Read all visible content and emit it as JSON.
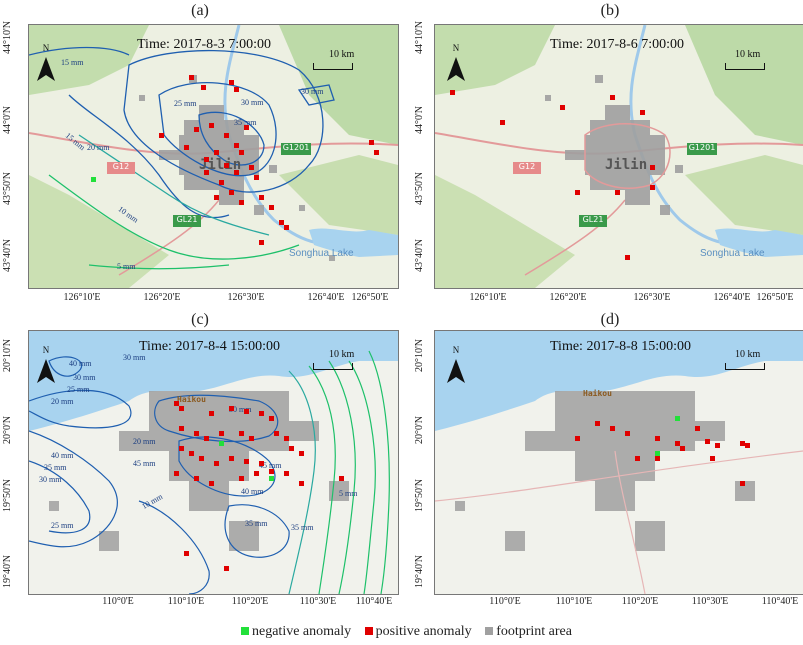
{
  "panels": [
    {
      "label": "(a)",
      "time": "Time: 2017-8-3 7:00:00",
      "scale": "10 km",
      "north": "N",
      "yticks": [
        "44°10'N",
        "44°0'N",
        "43°50'N",
        "43°40'N"
      ],
      "xticks": [
        "126°10'E",
        "126°20'E",
        "126°30'E",
        "126°40'E",
        "126°50'E"
      ],
      "city": "Jilin",
      "lake": "Songhua Lake",
      "roads": [
        "G1201",
        "G12",
        "GL21"
      ],
      "contours": [
        "15 mm",
        "25 mm",
        "30 mm",
        "35 mm",
        "30 mm",
        "20 mm",
        "15 mm",
        "10 mm",
        "5 mm"
      ]
    },
    {
      "label": "(b)",
      "time": "Time: 2017-8-6 7:00:00",
      "scale": "10 km",
      "north": "N",
      "yticks": [
        "44°10'N",
        "44°0'N",
        "43°50'N",
        "43°40'N"
      ],
      "xticks": [
        "126°10'E",
        "126°20'E",
        "126°30'E",
        "126°40'E",
        "126°50'E"
      ],
      "city": "Jilin",
      "lake": "Songhua Lake",
      "roads": [
        "G1201",
        "G12",
        "GL21"
      ]
    },
    {
      "label": "(c)",
      "time": "Time: 2017-8-4 15:00:00",
      "scale": "10 km",
      "north": "N",
      "yticks": [
        "20°10'N",
        "20°0'N",
        "19°50'N",
        "19°40'N"
      ],
      "xticks": [
        "110°0'E",
        "110°10'E",
        "110°20'E",
        "110°30'E",
        "110°40'E"
      ],
      "city": "Haikou",
      "contours": [
        "40 mm",
        "30 mm",
        "30 mm",
        "25 mm",
        "20 mm",
        "50 mm",
        "20 mm",
        "45 mm",
        "40 mm",
        "35 mm",
        "30 mm",
        "45 mm",
        "40 mm",
        "10 mm",
        "25 mm",
        "35 mm",
        "35 mm",
        "5 mm"
      ]
    },
    {
      "label": "(d)",
      "time": "Time: 2017-8-8 15:00:00",
      "scale": "10 km",
      "north": "N",
      "yticks": [
        "20°10'N",
        "20°0'N",
        "19°50'N",
        "19°40'N"
      ],
      "xticks": [
        "110°0'E",
        "110°10'E",
        "110°20'E",
        "110°30'E",
        "110°40'E"
      ],
      "city": "Haikou"
    }
  ],
  "legend": {
    "negative": "negative anomaly",
    "positive": "positive anomaly",
    "footprint": "footprint area"
  },
  "colors": {
    "negative": "#22e03a",
    "positive": "#e00000",
    "footprint": "#a0a0a0",
    "water": "#a8d3ef",
    "land": "#eef0e4",
    "forest": "#b6d69e",
    "contour_hi": "#1f5fb0",
    "contour_lo": "#1ec06a"
  }
}
